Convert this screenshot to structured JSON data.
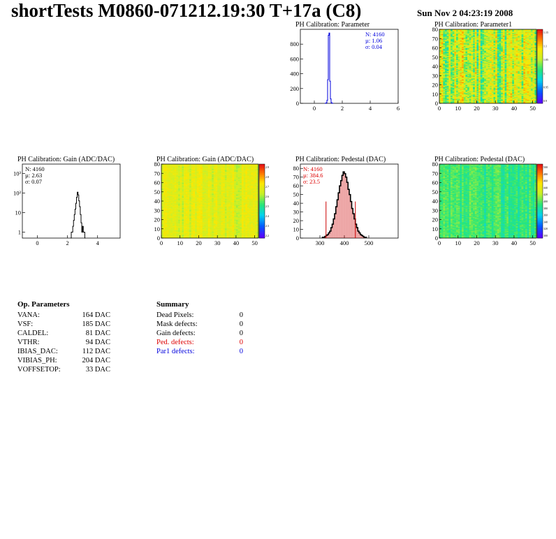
{
  "header": {
    "title": "shortTests M0860-071212.19:30 T+17a (C8)",
    "datetime": "Sun Nov  2 04:23:19 2008"
  },
  "colors": {
    "blue": "#0000dd",
    "red": "#dd0000",
    "black": "#000000"
  },
  "chart_data": [
    {
      "id": "param",
      "type": "histogram",
      "title": "PH Calibration: Parameter",
      "xlim": [
        -1,
        6
      ],
      "ylim": [
        0,
        1000
      ],
      "xticks": [
        0,
        2,
        4,
        6
      ],
      "yticks": [
        0,
        200,
        400,
        600,
        800
      ],
      "line_color": "#0000dd",
      "bins": {
        "start": 0.75,
        "width": 0.05,
        "values": [
          0,
          2,
          8,
          40,
          320,
          920,
          950,
          300,
          60,
          10,
          2,
          0
        ]
      },
      "stats": {
        "n": "N: 4160",
        "mu": "µ: 1.06",
        "sigma": "σ: 0.04",
        "color": "#0000dd"
      }
    },
    {
      "id": "param1",
      "type": "heatmap",
      "title": "PH Calibration: Parameter1",
      "xlim": [
        0,
        52
      ],
      "ylim": [
        0,
        80
      ],
      "xticks": [
        0,
        10,
        20,
        30,
        40,
        50
      ],
      "yticks": [
        0,
        10,
        20,
        30,
        40,
        50,
        60,
        70,
        80
      ],
      "zticks": [
        "1.15",
        "1.1",
        "1.05",
        "1",
        "0.95",
        "0.9"
      ],
      "columns": 52,
      "rows": 80,
      "seed": 11,
      "mean": 0.6,
      "spread": 0.32
    },
    {
      "id": "gain",
      "type": "histogram",
      "title": "PH Calibration: Gain (ADC/DAC)",
      "log_y": true,
      "xlim": [
        -1,
        5.5
      ],
      "ylim": [
        0.5,
        3000
      ],
      "xticks": [
        0,
        2,
        4
      ],
      "yticks": [
        1,
        10,
        100,
        1000
      ],
      "ytick_labels": [
        "1",
        "10",
        "10²",
        "10³"
      ],
      "line_color": "#000000",
      "bins": {
        "start": 2.2,
        "width": 0.05,
        "values": [
          0,
          1,
          1,
          2,
          4,
          8,
          15,
          30,
          60,
          110,
          80,
          40,
          20,
          8,
          3,
          1,
          2,
          1,
          1,
          0
        ]
      },
      "stats": {
        "n": "N: 4160",
        "mu": "µ: 2.63",
        "sigma": "σ: 0.07",
        "color": "#000000"
      }
    },
    {
      "id": "gainmap",
      "type": "heatmap",
      "title": "PH Calibration: Gain (ADC/DAC)",
      "xlim": [
        0,
        52
      ],
      "ylim": [
        0,
        80
      ],
      "xticks": [
        0,
        10,
        20,
        30,
        40,
        50
      ],
      "yticks": [
        0,
        10,
        20,
        30,
        40,
        50,
        60,
        70,
        80
      ],
      "zticks": [
        "2.9",
        "2.8",
        "2.7",
        "2.6",
        "2.5",
        "2.4",
        "2.3",
        "2.2"
      ],
      "columns": 52,
      "rows": 80,
      "seed": 23,
      "mean": 0.66,
      "spread": 0.12
    },
    {
      "id": "ped",
      "type": "histogram",
      "title": "PH Calibration: Pedestal (DAC)",
      "xlim": [
        220,
        620
      ],
      "ylim": [
        0,
        85
      ],
      "xticks": [
        300,
        400,
        500
      ],
      "yticks": [
        0,
        10,
        20,
        30,
        40,
        50,
        60,
        70,
        80
      ],
      "line_color": "#000000",
      "fill_color": "#cc0000",
      "cuts": [
        {
          "x": 325,
          "y": 42
        },
        {
          "x": 445,
          "y": 42
        }
      ],
      "bins": {
        "start": 310,
        "width": 5,
        "values": [
          1,
          1,
          2,
          3,
          4,
          6,
          8,
          12,
          16,
          22,
          28,
          36,
          44,
          52,
          60,
          66,
          72,
          76,
          74,
          70,
          64,
          56,
          50,
          42,
          34,
          28,
          22,
          16,
          12,
          8,
          6,
          4,
          3,
          2,
          1,
          1
        ]
      },
      "stats": {
        "n": "N: 4160",
        "mu": "µ: 384.6",
        "sigma": "σ: 23.5",
        "color": "#dd0000"
      }
    },
    {
      "id": "pedmap",
      "type": "heatmap",
      "title": "PH Calibration: Pedestal (DAC)",
      "xlim": [
        0,
        52
      ],
      "ylim": [
        0,
        80
      ],
      "xticks": [
        0,
        10,
        20,
        30,
        40,
        50
      ],
      "yticks": [
        0,
        10,
        20,
        30,
        40,
        50,
        60,
        70,
        80
      ],
      "zticks": [
        "500",
        "480",
        "460",
        "440",
        "420",
        "400",
        "380",
        "360",
        "340",
        "320",
        "300"
      ],
      "columns": 52,
      "rows": 80,
      "seed": 37,
      "mean": 0.45,
      "spread": 0.12
    }
  ],
  "op_parameters": {
    "title": "Op. Parameters",
    "rows": [
      {
        "name": "VANA:",
        "value": "164 DAC"
      },
      {
        "name": "VSF:",
        "value": "185 DAC"
      },
      {
        "name": "CALDEL:",
        "value": "81 DAC"
      },
      {
        "name": "VTHR:",
        "value": "94 DAC"
      },
      {
        "name": "IBIAS_DAC:",
        "value": "112 DAC"
      },
      {
        "name": "VIBIAS_PH:",
        "value": "204 DAC"
      },
      {
        "name": "VOFFSETOP:",
        "value": "33 DAC"
      }
    ]
  },
  "summary": {
    "title": "Summary",
    "rows": [
      {
        "name": "Dead Pixels:",
        "value": "0",
        "color": "#000000"
      },
      {
        "name": "Mask defects:",
        "value": "0",
        "color": "#000000"
      },
      {
        "name": "Gain defects:",
        "value": "0",
        "color": "#000000"
      },
      {
        "name": "Ped. defects:",
        "value": "0",
        "color": "#dd0000"
      },
      {
        "name": "Par1 defects:",
        "value": "0",
        "color": "#0000dd"
      }
    ]
  }
}
